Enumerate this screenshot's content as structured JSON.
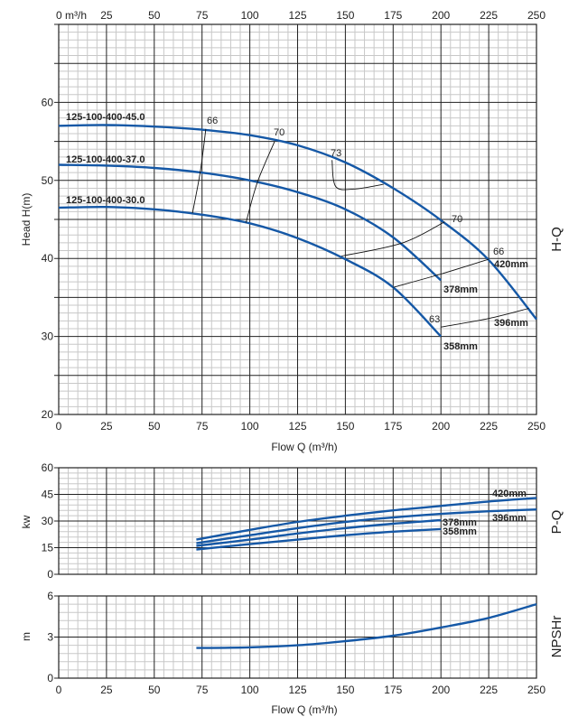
{
  "chart_data": [
    {
      "type": "line",
      "title": "H-Q",
      "xlabel": "Flow Q (m³/h)",
      "top_unit_label": "0 m³/h",
      "ylabel": "Head H(m)",
      "xlim": [
        0,
        250
      ],
      "ylim": [
        20,
        70
      ],
      "x_ticks": [
        "0",
        "25",
        "50",
        "75",
        "100",
        "125",
        "150",
        "175",
        "200",
        "225",
        "250"
      ],
      "top_ticks": [
        "25",
        "50",
        "75",
        "100",
        "125",
        "150",
        "175",
        "200",
        "225",
        "250"
      ],
      "y_ticks": [
        "20",
        "30",
        "40",
        "50",
        "60"
      ],
      "grid": true,
      "series": [
        {
          "name": "125-100-400-45.0",
          "x": [
            0,
            25,
            50,
            75,
            100,
            125,
            150,
            175,
            200,
            225,
            250
          ],
          "y": [
            57.0,
            57.1,
            56.9,
            56.5,
            55.8,
            54.5,
            52.3,
            49.0,
            44.9,
            39.8,
            32.2
          ]
        },
        {
          "name": "125-100-400-37.0",
          "x": [
            0,
            25,
            50,
            75,
            100,
            125,
            150,
            175,
            200
          ],
          "y": [
            52.0,
            51.9,
            51.6,
            51.0,
            50.0,
            48.5,
            46.3,
            42.7,
            37.2
          ]
        },
        {
          "name": "125-100-400-30.0",
          "x": [
            0,
            25,
            50,
            75,
            100,
            125,
            150,
            175,
            200
          ],
          "y": [
            46.5,
            46.6,
            46.3,
            45.6,
            44.5,
            42.6,
            39.9,
            36.3,
            30.0
          ]
        }
      ],
      "diameter_labels": [
        "420mm",
        "378mm",
        "396mm",
        "358mm"
      ],
      "efficiency_lines": [
        {
          "label": "66",
          "points": [
            [
              77,
              56.6
            ],
            [
              74,
              51.0
            ],
            [
              70,
              45.8
            ]
          ]
        },
        {
          "label": "70",
          "points": [
            [
              113,
              55.0
            ],
            [
              104,
              49.8
            ],
            [
              98,
              44.6
            ]
          ]
        },
        {
          "label": "73",
          "points": [
            [
              143,
              52.6
            ],
            [
              145,
              49.2
            ],
            [
              155,
              48.9
            ],
            [
              170,
              49.5
            ]
          ]
        },
        {
          "label": "70",
          "points": [
            [
              202,
              44.7
            ],
            [
              180,
              42.0
            ],
            [
              148,
              40.3
            ]
          ]
        },
        {
          "label": "66",
          "points": [
            [
              225,
              39.9
            ],
            [
              200,
              38.0
            ],
            [
              175,
              36.3
            ]
          ]
        },
        {
          "label": "63",
          "points": [
            [
              246,
              33.6
            ],
            [
              225,
              32.3
            ],
            [
              200,
              31.2
            ]
          ]
        }
      ]
    },
    {
      "type": "line",
      "title": "P-Q",
      "ylabel": "kw",
      "xlim": [
        0,
        250
      ],
      "ylim": [
        0,
        60
      ],
      "y_ticks": [
        "0",
        "15",
        "30",
        "45",
        "60"
      ],
      "grid": true,
      "series": [
        {
          "name": "420mm",
          "x": [
            72,
            100,
            125,
            150,
            175,
            200,
            225,
            250
          ],
          "y": [
            19.5,
            25,
            29.5,
            33,
            36,
            38.5,
            41,
            43
          ]
        },
        {
          "name": "396mm",
          "x": [
            72,
            100,
            125,
            150,
            175,
            200,
            225,
            250
          ],
          "y": [
            17.5,
            22,
            26,
            29.5,
            32,
            34,
            35.5,
            36.5
          ]
        },
        {
          "name": "378mm",
          "x": [
            72,
            100,
            125,
            150,
            175,
            200
          ],
          "y": [
            16,
            19.5,
            23,
            26,
            28.5,
            30.5
          ]
        },
        {
          "name": "358mm",
          "x": [
            72,
            100,
            125,
            150,
            175,
            200
          ],
          "y": [
            14,
            17,
            19.5,
            22,
            24,
            25.5
          ]
        }
      ]
    },
    {
      "type": "line",
      "title": "NPSHr",
      "xlabel": "Flow Q (m³/h)",
      "ylabel": "m",
      "xlim": [
        0,
        250
      ],
      "ylim": [
        0,
        6
      ],
      "x_ticks": [
        "0",
        "25",
        "50",
        "75",
        "100",
        "125",
        "150",
        "175",
        "200",
        "225",
        "250"
      ],
      "y_ticks": [
        "0",
        "3",
        "6"
      ],
      "grid": true,
      "series": [
        {
          "name": "NPSHr",
          "x": [
            72,
            100,
            125,
            150,
            175,
            200,
            225,
            250
          ],
          "y": [
            2.2,
            2.25,
            2.4,
            2.7,
            3.1,
            3.7,
            4.4,
            5.4
          ]
        }
      ]
    }
  ],
  "colors": {
    "curve": "#1558a6",
    "grid_major": "#222222",
    "grid_minor": "#c8c8c8"
  }
}
